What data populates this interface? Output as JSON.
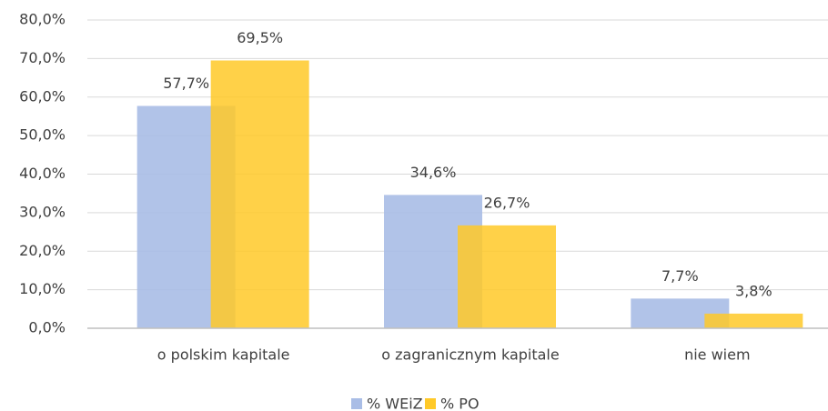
{
  "chart_data": {
    "type": "bar",
    "categories": [
      "o polskim kapitale",
      "o zagranicznym kapitale",
      "nie wiem"
    ],
    "series": [
      {
        "name": "% WEiZ",
        "color": "#a9bde6",
        "values": [
          57.7,
          34.6,
          7.7
        ],
        "value_labels": [
          "57,7%",
          "34,6%",
          "7,7%"
        ]
      },
      {
        "name": "% PO",
        "color": "#ffc928",
        "values": [
          69.5,
          26.7,
          3.8
        ],
        "value_labels": [
          "69,5%",
          "26,7%",
          "3,8%"
        ]
      }
    ],
    "ylim": [
      0,
      80
    ],
    "yticks": [
      {
        "value": 0,
        "label": "0,0%"
      },
      {
        "value": 10,
        "label": "10,0%"
      },
      {
        "value": 20,
        "label": "20,0%"
      },
      {
        "value": 30,
        "label": "30,0%"
      },
      {
        "value": 40,
        "label": "40,0%"
      },
      {
        "value": 50,
        "label": "50,0%"
      },
      {
        "value": 60,
        "label": "60,0%"
      },
      {
        "value": 70,
        "label": "70,0%"
      },
      {
        "value": 80,
        "label": "80,0%"
      }
    ],
    "grid": true,
    "legend": "bottom"
  }
}
